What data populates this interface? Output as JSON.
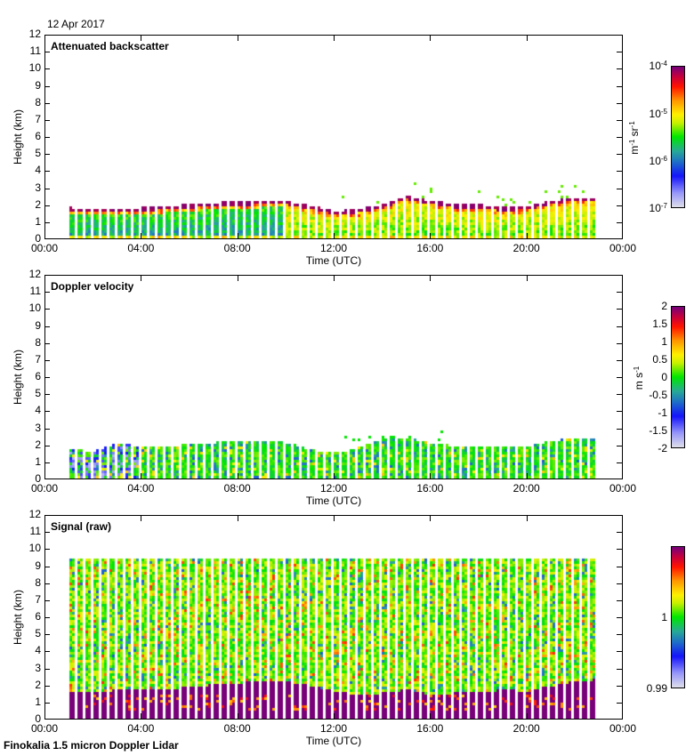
{
  "date": "12 Apr 2017",
  "footer": "Finokalia 1.5 micron Doppler Lidar",
  "chart_data": [
    {
      "type": "heatmap",
      "title": "Attenuated backscatter",
      "xlabel": "Time (UTC)",
      "ylabel": "Height (km)",
      "xlim": [
        0,
        24
      ],
      "ylim": [
        0,
        12
      ],
      "xticks": [
        "00:00",
        "04:00",
        "08:00",
        "12:00",
        "16:00",
        "20:00",
        "00:00"
      ],
      "yticks": [
        "0",
        "1",
        "2",
        "3",
        "4",
        "5",
        "6",
        "7",
        "8",
        "9",
        "10",
        "11",
        "12"
      ],
      "colorbar": {
        "scale": "log",
        "min": 1e-07,
        "max": 0.0001,
        "ticks": [
          {
            "base": "10",
            "exp": "-4"
          },
          {
            "base": "10",
            "exp": "-5"
          },
          {
            "base": "10",
            "exp": "-6"
          },
          {
            "base": "10",
            "exp": "-7"
          }
        ],
        "unit": {
          "a": "m",
          "a_exp": "-1",
          "b": " sr",
          "b_exp": "-1"
        }
      },
      "data_start_hour": 1.0,
      "data_end_hour": 22.9,
      "boundary_layer_top_km_by_hour": [
        null,
        1.8,
        1.75,
        1.75,
        1.8,
        1.9,
        2.0,
        2.1,
        2.15,
        2.2,
        2.2,
        1.9,
        1.6,
        1.7,
        2.0,
        2.5,
        2.2,
        2.0,
        2.0,
        1.8,
        1.9,
        2.2,
        2.4,
        2.4
      ]
    },
    {
      "type": "heatmap",
      "title": "Doppler velocity",
      "xlabel": "Time (UTC)",
      "ylabel": "Height (km)",
      "xlim": [
        0,
        24
      ],
      "ylim": [
        0,
        12
      ],
      "xticks": [
        "00:00",
        "04:00",
        "08:00",
        "12:00",
        "16:00",
        "20:00",
        "00:00"
      ],
      "yticks": [
        "0",
        "1",
        "2",
        "3",
        "4",
        "5",
        "6",
        "7",
        "8",
        "9",
        "10",
        "11",
        "12"
      ],
      "colorbar": {
        "scale": "linear",
        "min": -2,
        "max": 2,
        "ticks": [
          "2",
          "1.5",
          "1",
          "0.5",
          "0",
          "-0.5",
          "-1",
          "-1.5",
          "-2"
        ],
        "unit": {
          "a": "m s",
          "a_exp": "-1"
        }
      },
      "data_start_hour": 1.0,
      "data_end_hour": 22.9,
      "top_km_by_hour": [
        null,
        1.8,
        1.7,
        2.2,
        1.9,
        2.0,
        2.1,
        2.2,
        2.3,
        2.3,
        2.2,
        1.8,
        1.6,
        1.9,
        2.5,
        2.5,
        2.2,
        2.0,
        2.0,
        1.9,
        2.0,
        2.3,
        2.5,
        2.5
      ]
    },
    {
      "type": "heatmap",
      "title": "Signal (raw)",
      "xlabel": "Time (UTC)",
      "ylabel": "Height (km)",
      "xlim": [
        0,
        24
      ],
      "ylim": [
        0,
        12
      ],
      "xticks": [
        "00:00",
        "04:00",
        "08:00",
        "12:00",
        "16:00",
        "20:00",
        "00:00"
      ],
      "yticks": [
        "0",
        "1",
        "2",
        "3",
        "4",
        "5",
        "6",
        "7",
        "8",
        "9",
        "10",
        "11",
        "12"
      ],
      "colorbar": {
        "scale": "linear",
        "min": 0.99,
        "max": 1.01,
        "ticks": [
          "1",
          "0.99"
        ]
      },
      "data_start_hour": 1.0,
      "data_end_hour": 22.9,
      "data_top_km": 9.5,
      "saturated_top_km_by_hour": [
        null,
        1.7,
        1.7,
        1.75,
        1.8,
        1.8,
        1.95,
        2.1,
        2.2,
        2.25,
        2.3,
        2.0,
        1.7,
        1.5,
        1.6,
        1.8,
        1.5,
        1.6,
        1.6,
        1.8,
        1.7,
        2.0,
        2.3,
        2.4
      ]
    }
  ]
}
